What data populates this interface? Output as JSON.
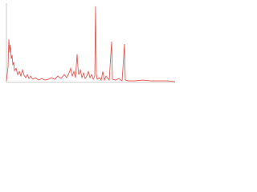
{
  "chart_data": {
    "type": "line",
    "x": [
      0,
      2,
      3,
      4,
      5,
      6,
      7,
      8,
      9,
      10,
      12,
      14,
      16,
      18,
      20,
      22,
      24,
      26,
      28,
      30,
      33,
      36,
      40,
      44,
      48,
      52,
      56,
      60,
      64,
      68,
      72,
      75,
      78,
      80,
      82,
      84,
      86,
      88,
      89,
      90,
      92,
      94,
      96,
      98,
      100,
      102,
      104,
      106,
      108,
      110,
      111,
      112,
      113,
      116,
      118,
      120,
      122,
      124,
      128,
      131,
      132,
      136,
      140,
      144,
      147,
      148,
      152,
      160,
      170,
      180,
      190,
      200,
      210
    ],
    "series": [
      {
        "color": "#e8473f",
        "values": [
          2,
          20,
          55,
          38,
          48,
          30,
          35,
          22,
          26,
          15,
          18,
          10,
          14,
          8,
          16,
          9,
          6,
          10,
          5,
          8,
          4,
          6,
          3,
          5,
          3,
          4,
          6,
          4,
          8,
          5,
          10,
          6,
          12,
          18,
          8,
          14,
          6,
          36,
          20,
          10,
          16,
          6,
          12,
          5,
          8,
          14,
          6,
          10,
          4,
          8,
          97,
          10,
          4,
          6,
          3,
          14,
          3,
          8,
          3,
          52,
          4,
          3,
          5,
          2,
          49,
          3,
          2,
          2,
          3,
          2,
          2,
          2,
          1
        ]
      }
    ],
    "xlim": [
      0,
      210
    ],
    "ylim": [
      0,
      100
    ]
  }
}
